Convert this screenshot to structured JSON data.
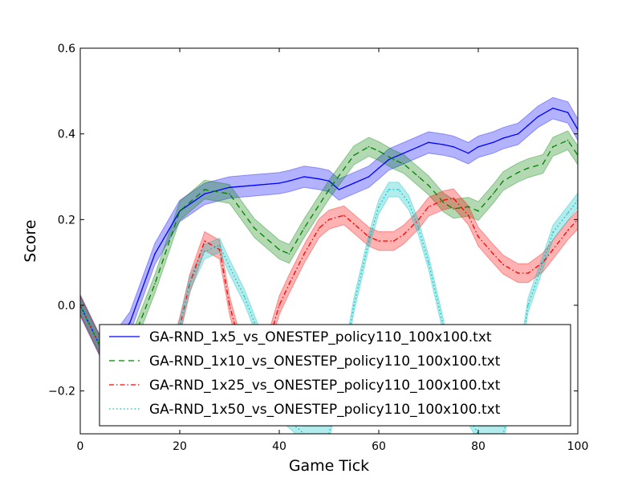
{
  "chart_data": {
    "type": "line",
    "title": "",
    "xlabel": "Game Tick",
    "ylabel": "Score",
    "xlim": [
      0,
      100
    ],
    "ylim": [
      -0.3,
      0.6
    ],
    "xticks": [
      0,
      20,
      40,
      60,
      80,
      100
    ],
    "xtick_labels": [
      "0",
      "20",
      "40",
      "60",
      "80",
      "100"
    ],
    "yticks": [
      -0.2,
      0.0,
      0.2,
      0.4,
      0.6
    ],
    "ytick_labels": [
      "−0.2",
      "0.0",
      "0.2",
      "0.4",
      "0.6"
    ],
    "grid": false,
    "legend_position": "lower-center",
    "series": [
      {
        "name": "GA-RND_1x5_vs_ONESTEP_policy110_100x100.txt",
        "color": "#0000ff",
        "linestyle": "solid",
        "band_half_width": 0.025,
        "x": [
          0,
          5,
          10,
          15,
          20,
          25,
          30,
          35,
          40,
          42,
          45,
          48,
          50,
          52,
          55,
          58,
          60,
          62,
          65,
          68,
          70,
          73,
          75,
          78,
          80,
          83,
          85,
          88,
          90,
          92,
          95,
          98,
          100
        ],
        "y": [
          0.0,
          -0.12,
          -0.04,
          0.12,
          0.22,
          0.26,
          0.275,
          0.28,
          0.285,
          0.29,
          0.3,
          0.295,
          0.29,
          0.27,
          0.285,
          0.3,
          0.32,
          0.34,
          0.355,
          0.37,
          0.38,
          0.375,
          0.37,
          0.355,
          0.37,
          0.38,
          0.39,
          0.4,
          0.42,
          0.44,
          0.46,
          0.45,
          0.41
        ]
      },
      {
        "name": "GA-RND_1x10_vs_ONESTEP_policy110_100x100.txt",
        "color": "#008000",
        "linestyle": "dashed",
        "band_half_width": 0.022,
        "x": [
          0,
          5,
          10,
          15,
          20,
          25,
          30,
          35,
          40,
          42,
          45,
          50,
          55,
          58,
          60,
          63,
          65,
          68,
          70,
          73,
          75,
          78,
          80,
          83,
          85,
          88,
          90,
          93,
          95,
          98,
          100
        ],
        "y": [
          0.0,
          -0.12,
          -0.1,
          0.05,
          0.22,
          0.27,
          0.26,
          0.18,
          0.13,
          0.12,
          0.18,
          0.27,
          0.35,
          0.37,
          0.36,
          0.34,
          0.33,
          0.3,
          0.28,
          0.24,
          0.225,
          0.23,
          0.22,
          0.26,
          0.29,
          0.31,
          0.32,
          0.33,
          0.37,
          0.385,
          0.35
        ]
      },
      {
        "name": "GA-RND_1x25_vs_ONESTEP_policy110_100x100.txt",
        "color": "#ff0000",
        "linestyle": "dashdot",
        "band_half_width": 0.022,
        "x": [
          0,
          5,
          10,
          15,
          20,
          22,
          25,
          28,
          30,
          33,
          35,
          37,
          40,
          42,
          45,
          48,
          50,
          53,
          55,
          58,
          60,
          63,
          65,
          68,
          70,
          73,
          75,
          78,
          80,
          83,
          85,
          88,
          90,
          93,
          95,
          98,
          100
        ],
        "y": [
          0.0,
          -0.12,
          -0.25,
          -0.25,
          -0.05,
          0.05,
          0.15,
          0.13,
          0.0,
          -0.13,
          -0.2,
          -0.12,
          0.0,
          0.05,
          0.12,
          0.18,
          0.2,
          0.21,
          0.19,
          0.16,
          0.15,
          0.15,
          0.165,
          0.2,
          0.23,
          0.245,
          0.25,
          0.21,
          0.16,
          0.12,
          0.095,
          0.075,
          0.075,
          0.1,
          0.13,
          0.175,
          0.2
        ]
      },
      {
        "name": "GA-RND_1x50_vs_ONESTEP_policy110_100x100.txt",
        "color": "#00bfbf",
        "linestyle": "dotted",
        "band_half_width": 0.017,
        "x": [
          0,
          5,
          10,
          15,
          20,
          22,
          25,
          28,
          30,
          33,
          35,
          37,
          40,
          45,
          50,
          53,
          55,
          58,
          60,
          62,
          64,
          66,
          68,
          70,
          73,
          75,
          80,
          85,
          88,
          90,
          93,
          95,
          98,
          100
        ],
        "y": [
          0.0,
          -0.12,
          -0.25,
          -0.25,
          -0.05,
          0.05,
          0.125,
          0.14,
          0.09,
          0.02,
          -0.04,
          -0.1,
          -0.25,
          -0.3,
          -0.3,
          -0.13,
          0.0,
          0.15,
          0.23,
          0.27,
          0.27,
          0.24,
          0.18,
          0.1,
          -0.05,
          -0.2,
          -0.3,
          -0.3,
          -0.15,
          0.0,
          0.1,
          0.17,
          0.215,
          0.245
        ]
      }
    ]
  }
}
